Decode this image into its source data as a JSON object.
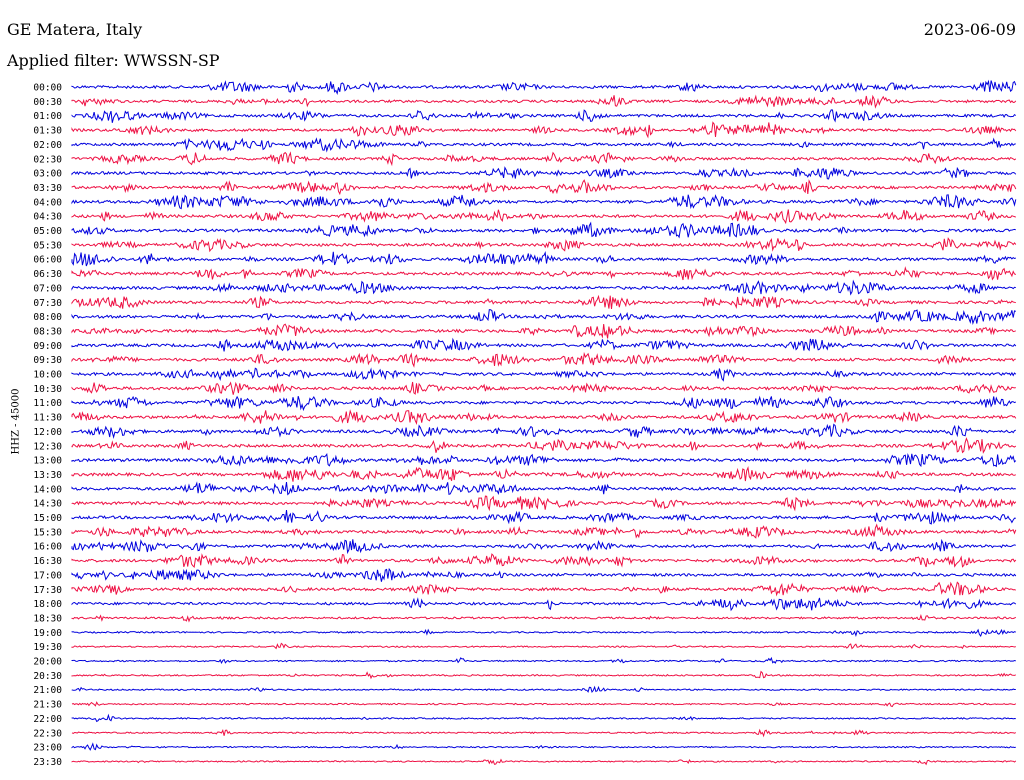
{
  "header": {
    "station": "GE Matera, Italy",
    "date": "2023-06-09",
    "filter": "Applied filter: WWSSN-SP"
  },
  "axis": {
    "ylabel": "HHZ - 45000"
  },
  "chart_data": {
    "type": "line",
    "title": "GE Matera, Italy",
    "ylabel": "HHZ - 45000",
    "series_colors": [
      "#0000dd",
      "#ee1144"
    ],
    "rows": [
      {
        "label": "00:00",
        "activity": 0.9
      },
      {
        "label": "00:30",
        "activity": 0.8
      },
      {
        "label": "01:00",
        "activity": 0.9
      },
      {
        "label": "01:30",
        "activity": 0.8
      },
      {
        "label": "02:00",
        "activity": 0.9
      },
      {
        "label": "02:30",
        "activity": 0.85
      },
      {
        "label": "03:00",
        "activity": 0.9
      },
      {
        "label": "03:30",
        "activity": 0.85
      },
      {
        "label": "04:00",
        "activity": 1.0
      },
      {
        "label": "04:30",
        "activity": 1.0
      },
      {
        "label": "05:00",
        "activity": 1.0
      },
      {
        "label": "05:30",
        "activity": 1.0
      },
      {
        "label": "06:00",
        "activity": 1.0
      },
      {
        "label": "06:30",
        "activity": 1.0
      },
      {
        "label": "07:00",
        "activity": 1.0
      },
      {
        "label": "07:30",
        "activity": 1.0
      },
      {
        "label": "08:00",
        "activity": 1.0
      },
      {
        "label": "08:30",
        "activity": 1.0
      },
      {
        "label": "09:00",
        "activity": 1.0
      },
      {
        "label": "09:30",
        "activity": 1.0
      },
      {
        "label": "10:00",
        "activity": 1.0
      },
      {
        "label": "10:30",
        "activity": 1.0
      },
      {
        "label": "11:00",
        "activity": 1.0
      },
      {
        "label": "11:30",
        "activity": 1.0
      },
      {
        "label": "12:00",
        "activity": 1.0
      },
      {
        "label": "12:30",
        "activity": 1.0
      },
      {
        "label": "13:00",
        "activity": 1.0
      },
      {
        "label": "13:30",
        "activity": 1.0
      },
      {
        "label": "14:00",
        "activity": 1.0
      },
      {
        "label": "14:30",
        "activity": 1.0
      },
      {
        "label": "15:00",
        "activity": 1.0
      },
      {
        "label": "15:30",
        "activity": 1.0
      },
      {
        "label": "16:00",
        "activity": 0.9
      },
      {
        "label": "16:30",
        "activity": 0.9
      },
      {
        "label": "17:00",
        "activity": 0.9
      },
      {
        "label": "17:30",
        "activity": 0.9
      },
      {
        "label": "18:00",
        "activity": 0.75
      },
      {
        "label": "18:30",
        "activity": 0.4
      },
      {
        "label": "19:00",
        "activity": 0.15
      },
      {
        "label": "19:30",
        "activity": 0.1
      },
      {
        "label": "20:00",
        "activity": 0.12
      },
      {
        "label": "20:30",
        "activity": 0.15
      },
      {
        "label": "21:00",
        "activity": 0.1
      },
      {
        "label": "21:30",
        "activity": 0.1
      },
      {
        "label": "22:00",
        "activity": 0.1
      },
      {
        "label": "22:30",
        "activity": 0.08
      },
      {
        "label": "23:00",
        "activity": 0.08
      },
      {
        "label": "23:30",
        "activity": 0.06
      }
    ]
  }
}
